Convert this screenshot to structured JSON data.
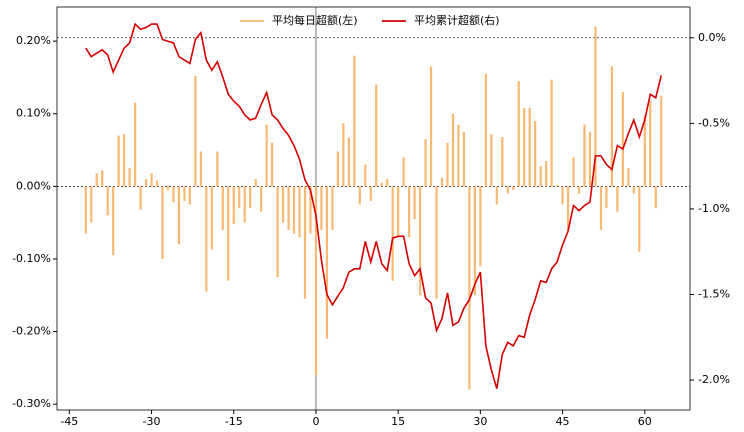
{
  "chart_data": {
    "type": "combo",
    "x": [
      -42,
      -41,
      -40,
      -39,
      -38,
      -37,
      -36,
      -35,
      -34,
      -33,
      -32,
      -31,
      -30,
      -29,
      -28,
      -27,
      -26,
      -25,
      -24,
      -23,
      -22,
      -21,
      -20,
      -19,
      -18,
      -17,
      -16,
      -15,
      -14,
      -13,
      -12,
      -11,
      -10,
      -9,
      -8,
      -7,
      -6,
      -5,
      -4,
      -3,
      -2,
      -1,
      0,
      1,
      2,
      3,
      4,
      5,
      6,
      7,
      8,
      9,
      10,
      11,
      12,
      13,
      14,
      15,
      16,
      17,
      18,
      19,
      20,
      21,
      22,
      23,
      24,
      25,
      26,
      27,
      28,
      29,
      30,
      31,
      32,
      33,
      34,
      35,
      36,
      37,
      38,
      39,
      40,
      41,
      42,
      43,
      44,
      45,
      46,
      47,
      48,
      49,
      50,
      51,
      52,
      53,
      54,
      55,
      56,
      57,
      58,
      59,
      60,
      61,
      62,
      63
    ],
    "series": [
      {
        "name": "平均每日超额(左)",
        "type": "bar",
        "color": "#f8b872",
        "values": [
          -0.065,
          -0.05,
          0.018,
          0.022,
          -0.04,
          -0.095,
          0.07,
          0.072,
          0.025,
          0.115,
          -0.032,
          0.01,
          0.018,
          0.008,
          -0.1,
          -0.005,
          -0.022,
          -0.08,
          -0.02,
          -0.025,
          0.152,
          0.048,
          -0.145,
          -0.087,
          0.048,
          -0.06,
          -0.13,
          -0.052,
          -0.03,
          -0.05,
          -0.03,
          0.01,
          -0.035,
          0.085,
          0.06,
          -0.125,
          -0.05,
          -0.06,
          -0.065,
          -0.07,
          -0.155,
          -0.065,
          -0.26,
          -0.06,
          -0.21,
          -0.06,
          0.048,
          0.087,
          0.067,
          0.18,
          -0.025,
          0.03,
          -0.02,
          0.14,
          0.005,
          0.01,
          -0.13,
          -0.07,
          0.04,
          -0.07,
          -0.045,
          -0.15,
          0.065,
          0.165,
          -0.155,
          0.012,
          0.06,
          0.1,
          0.085,
          0.075,
          -0.28,
          -0.15,
          -0.11,
          0.155,
          0.072,
          -0.025,
          0.068,
          -0.01,
          -0.005,
          0.145,
          0.108,
          0.108,
          0.09,
          0.028,
          0.035,
          0.147,
          0.002,
          -0.025,
          -0.06,
          0.04,
          -0.01,
          0.085,
          0.075,
          0.22,
          -0.06,
          -0.03,
          0.165,
          -0.035,
          0.13,
          0.025,
          -0.01,
          -0.09,
          0.098,
          0.118,
          -0.03,
          0.125
        ]
      },
      {
        "name": "平均累计超额(右)",
        "type": "line",
        "axis": "y2",
        "color": "#d40000",
        "values": [
          -0.06,
          -0.11,
          -0.09,
          -0.07,
          -0.1,
          -0.2,
          -0.13,
          -0.06,
          -0.03,
          0.08,
          0.05,
          0.06,
          0.08,
          0.08,
          -0.01,
          -0.02,
          -0.03,
          -0.11,
          -0.13,
          -0.15,
          -0.01,
          0.03,
          -0.13,
          -0.19,
          -0.14,
          -0.23,
          -0.33,
          -0.37,
          -0.4,
          -0.45,
          -0.48,
          -0.47,
          -0.39,
          -0.32,
          -0.45,
          -0.48,
          -0.53,
          -0.57,
          -0.63,
          -0.71,
          -0.83,
          -0.89,
          -1.04,
          -1.3,
          -1.5,
          -1.56,
          -1.51,
          -1.46,
          -1.37,
          -1.35,
          -1.35,
          -1.19,
          -1.31,
          -1.19,
          -1.32,
          -1.36,
          -1.17,
          -1.16,
          -1.16,
          -1.32,
          -1.39,
          -1.35,
          -1.52,
          -1.55,
          -1.71,
          -1.64,
          -1.49,
          -1.68,
          -1.66,
          -1.58,
          -1.53,
          -1.44,
          -1.37,
          -1.8,
          -1.94,
          -2.05,
          -1.85,
          -1.78,
          -1.8,
          -1.74,
          -1.75,
          -1.62,
          -1.53,
          -1.42,
          -1.43,
          -1.35,
          -1.31,
          -1.21,
          -1.13,
          -0.98,
          -1.01,
          -0.98,
          -0.96,
          -0.69,
          -0.69,
          -0.74,
          -0.77,
          -0.63,
          -0.65,
          -0.56,
          -0.48,
          -0.58,
          -0.48,
          -0.33,
          -0.35,
          -0.22
        ]
      }
    ],
    "xlim": [
      -47.25,
      68.25
    ],
    "xticks": [
      -45,
      -30,
      -15,
      0,
      15,
      30,
      45,
      60
    ],
    "ylim": [
      -0.308,
      0.247
    ],
    "yticks": [
      {
        "value": -0.3,
        "label": "-0.30%"
      },
      {
        "value": -0.2,
        "label": "-0.20%"
      },
      {
        "value": -0.1,
        "label": "-0.10%"
      },
      {
        "value": 0,
        "label": "0.00%"
      },
      {
        "value": 0.1,
        "label": "0.10%"
      },
      {
        "value": 0.2,
        "label": "0.20%"
      }
    ],
    "y2lim": [
      -2.175,
      0.18
    ],
    "y2ticks": [
      {
        "value": -2,
        "label": "-2.0%"
      },
      {
        "value": -1.5,
        "label": "-1.5%"
      },
      {
        "value": -1,
        "label": "-1.0%"
      },
      {
        "value": -0.5,
        "label": "-0.5%"
      },
      {
        "value": 0,
        "label": "0.0%"
      }
    ],
    "legend": "upper center"
  }
}
